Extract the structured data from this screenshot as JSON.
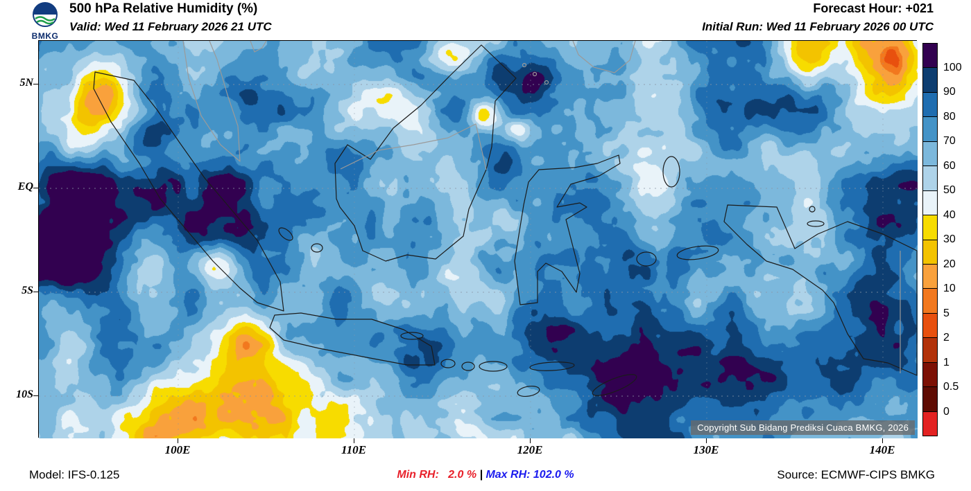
{
  "header": {
    "logo_text": "BMKG",
    "title": "500 hPa Relative Humidity (%)",
    "valid": "Valid: Wed 11 February 2026 21 UTC",
    "forecast_hour": "Forecast Hour: +021",
    "initial_run": "Initial Run: Wed 11 February 2026 00 UTC",
    "brand_color": "#0a2a6b"
  },
  "map": {
    "lat_labels": [
      "5N",
      "EQ",
      "5S",
      "10S"
    ],
    "lon_labels": [
      "100E",
      "110E",
      "120E",
      "130E",
      "140E"
    ],
    "copyright": "Copyright Sub Bidang Prediksi Cuaca BMKG, 2026"
  },
  "colorbar": {
    "labels": [
      "100",
      "90",
      "80",
      "70",
      "60",
      "50",
      "40",
      "30",
      "20",
      "10",
      "5",
      "2",
      "1",
      "0.5",
      "0"
    ],
    "colors_top_to_bottom": [
      "#320150",
      "#0d3d70",
      "#1f6db0",
      "#4493c7",
      "#7cb8dc",
      "#aed3e9",
      "#e9f3f9",
      "#f7dc00",
      "#f3c300",
      "#f9a13c",
      "#f2781e",
      "#e8500e",
      "#b23209",
      "#7c1004",
      "#5e0b02",
      "#e32222"
    ]
  },
  "footer": {
    "model": "Model: IFS-0.125",
    "min_rh": "Min RH:   2.0 %",
    "divider": " | ",
    "max_rh": "Max RH: 102.0 %",
    "source": "Source: ECMWF-CIPS BMKG",
    "min_color": "#e8202a",
    "max_color": "#1a1aee"
  },
  "chart_data": {
    "type": "heatmap",
    "title": "500 hPa Relative Humidity (%)",
    "variable": "relative humidity",
    "level_hpa": 500,
    "units": "%",
    "valid_time": "Wed 11 February 2026 21 UTC",
    "initial_run": "Wed 11 February 2026 00 UTC",
    "forecast_hour": 21,
    "model": "IFS-0.125",
    "source": "ECMWF-CIPS BMKG",
    "lon_axis": {
      "ticks": [
        "100E",
        "110E",
        "120E",
        "130E",
        "140E"
      ],
      "approx_range_deg_east": [
        92,
        142
      ]
    },
    "lat_axis": {
      "ticks": [
        "5N",
        "EQ",
        "5S",
        "10S"
      ],
      "approx_range_deg_north": [
        -12,
        7
      ]
    },
    "colorbar_levels": [
      0,
      0.5,
      1,
      2,
      5,
      10,
      20,
      30,
      40,
      50,
      60,
      70,
      80,
      90,
      100
    ],
    "min_rh_percent": 2.0,
    "max_rh_percent": 102.0,
    "legend_position": "right",
    "grid": "dashed graticule every 5 degrees"
  }
}
